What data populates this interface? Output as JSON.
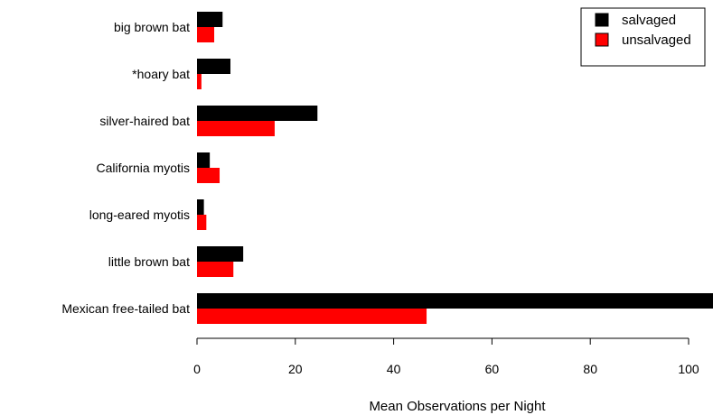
{
  "chart_data": {
    "type": "bar",
    "orientation": "horizontal",
    "title": "",
    "xlabel": "Mean Observations per Night",
    "ylabel": "",
    "categories": [
      "big brown bat",
      "*hoary bat",
      "silver-haired bat",
      "California myotis",
      "long-eared myotis",
      "little brown bat",
      "Mexican free-tailed bat"
    ],
    "series": [
      {
        "name": "salvaged",
        "color": "#000000",
        "values": [
          5.2,
          6.8,
          24.5,
          2.6,
          1.4,
          9.4,
          105
        ]
      },
      {
        "name": "unsalvaged",
        "color": "#ff0000",
        "values": [
          3.5,
          0.9,
          15.8,
          4.6,
          1.9,
          7.4,
          46.7
        ]
      }
    ],
    "xlim": [
      0,
      105
    ],
    "xticks": [
      0,
      20,
      40,
      60,
      80,
      100
    ],
    "legend_position": "top-right",
    "grid": false
  }
}
